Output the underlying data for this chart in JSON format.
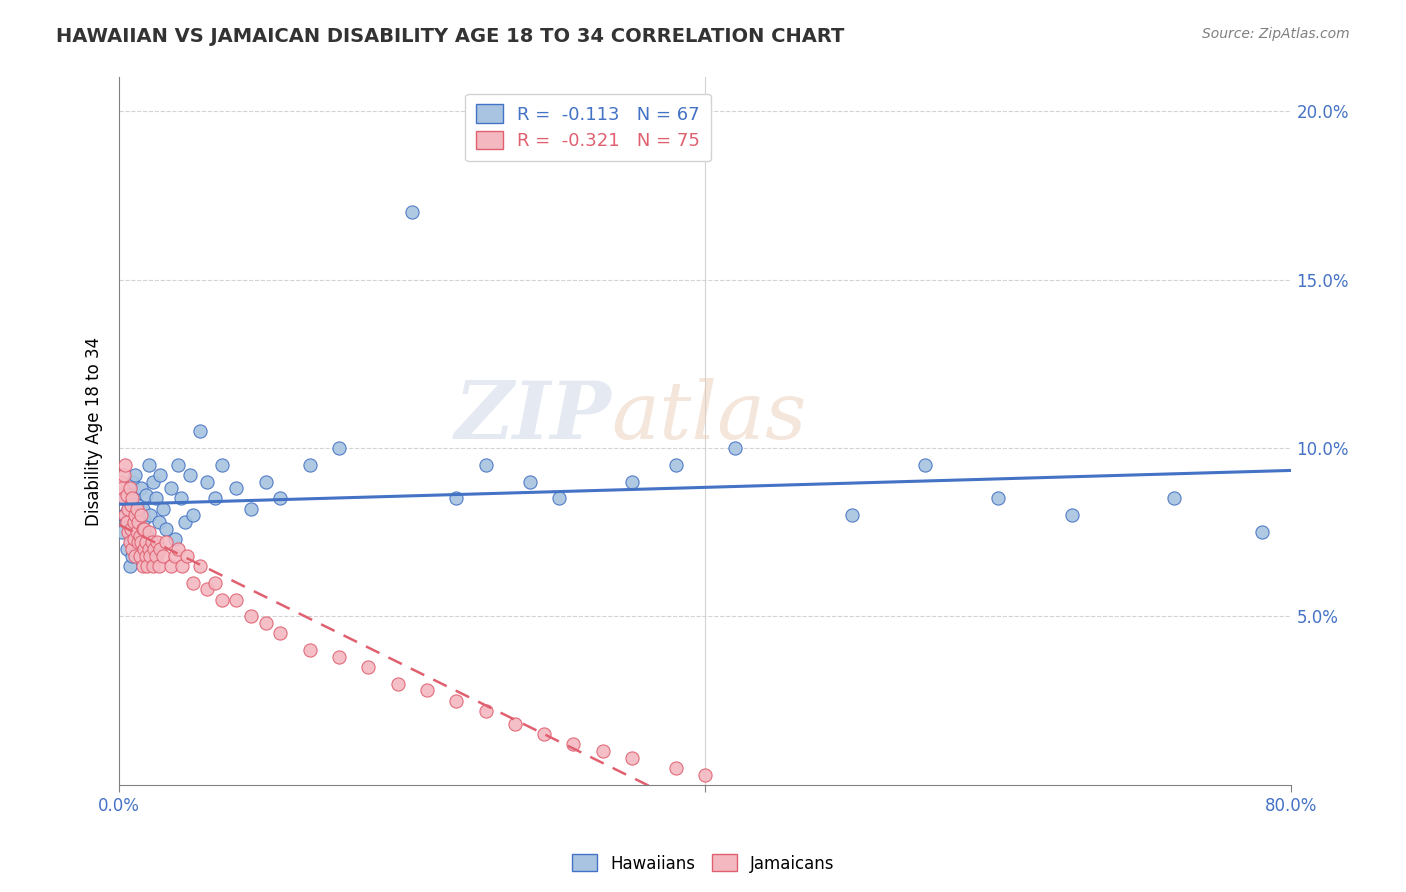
{
  "title": "HAWAIIAN VS JAMAICAN DISABILITY AGE 18 TO 34 CORRELATION CHART",
  "source_text": "Source: ZipAtlas.com",
  "ylabel": "Disability Age 18 to 34",
  "legend_hawaii": "R =  -0.113   N = 67",
  "legend_jamaica": "R =  -0.321   N = 75",
  "hawaii_color": "#a8c4e0",
  "hawaii_line_color": "#4472c4",
  "jamaica_color": "#f4b8c1",
  "jamaica_line_color": "#e06070",
  "background_color": "#ffffff",
  "watermark_zip": "ZIP",
  "watermark_atlas": "atlas",
  "xmin": 0.0,
  "xmax": 0.8,
  "ymin": 0.0,
  "ymax": 0.21,
  "yticks": [
    0.05,
    0.1,
    0.15,
    0.2
  ],
  "ytick_labels": [
    "5.0%",
    "10.0%",
    "15.0%",
    "20.0%"
  ],
  "hawaii_scatter_x": [
    0.002,
    0.003,
    0.004,
    0.005,
    0.005,
    0.006,
    0.007,
    0.007,
    0.008,
    0.008,
    0.009,
    0.009,
    0.01,
    0.01,
    0.011,
    0.011,
    0.012,
    0.012,
    0.013,
    0.014,
    0.015,
    0.015,
    0.016,
    0.016,
    0.017,
    0.018,
    0.019,
    0.02,
    0.021,
    0.022,
    0.023,
    0.025,
    0.027,
    0.028,
    0.03,
    0.032,
    0.035,
    0.038,
    0.04,
    0.042,
    0.045,
    0.048,
    0.05,
    0.055,
    0.06,
    0.065,
    0.07,
    0.08,
    0.09,
    0.1,
    0.11,
    0.13,
    0.15,
    0.2,
    0.23,
    0.25,
    0.28,
    0.3,
    0.35,
    0.38,
    0.42,
    0.5,
    0.55,
    0.6,
    0.65,
    0.72,
    0.78
  ],
  "hawaii_scatter_y": [
    0.075,
    0.08,
    0.085,
    0.07,
    0.078,
    0.082,
    0.065,
    0.088,
    0.072,
    0.076,
    0.068,
    0.09,
    0.073,
    0.085,
    0.077,
    0.092,
    0.069,
    0.083,
    0.078,
    0.071,
    0.076,
    0.088,
    0.073,
    0.082,
    0.079,
    0.086,
    0.074,
    0.095,
    0.08,
    0.07,
    0.09,
    0.085,
    0.078,
    0.092,
    0.082,
    0.076,
    0.088,
    0.073,
    0.095,
    0.085,
    0.078,
    0.092,
    0.08,
    0.105,
    0.09,
    0.085,
    0.095,
    0.088,
    0.082,
    0.09,
    0.085,
    0.095,
    0.1,
    0.17,
    0.085,
    0.095,
    0.09,
    0.085,
    0.09,
    0.095,
    0.1,
    0.08,
    0.095,
    0.085,
    0.08,
    0.085,
    0.075
  ],
  "jamaica_scatter_x": [
    0.001,
    0.002,
    0.003,
    0.003,
    0.004,
    0.004,
    0.005,
    0.005,
    0.006,
    0.006,
    0.007,
    0.007,
    0.008,
    0.008,
    0.009,
    0.009,
    0.01,
    0.01,
    0.011,
    0.011,
    0.012,
    0.012,
    0.013,
    0.013,
    0.014,
    0.014,
    0.015,
    0.015,
    0.016,
    0.016,
    0.017,
    0.017,
    0.018,
    0.018,
    0.019,
    0.02,
    0.02,
    0.021,
    0.022,
    0.023,
    0.024,
    0.025,
    0.026,
    0.027,
    0.028,
    0.03,
    0.032,
    0.035,
    0.038,
    0.04,
    0.043,
    0.046,
    0.05,
    0.055,
    0.06,
    0.065,
    0.07,
    0.08,
    0.09,
    0.1,
    0.11,
    0.13,
    0.15,
    0.17,
    0.19,
    0.21,
    0.23,
    0.25,
    0.27,
    0.29,
    0.31,
    0.33,
    0.35,
    0.38,
    0.4
  ],
  "jamaica_scatter_y": [
    0.09,
    0.088,
    0.085,
    0.092,
    0.08,
    0.095,
    0.078,
    0.086,
    0.075,
    0.082,
    0.072,
    0.088,
    0.076,
    0.083,
    0.07,
    0.085,
    0.078,
    0.073,
    0.08,
    0.068,
    0.075,
    0.082,
    0.072,
    0.078,
    0.068,
    0.074,
    0.08,
    0.072,
    0.076,
    0.065,
    0.07,
    0.076,
    0.068,
    0.072,
    0.065,
    0.07,
    0.075,
    0.068,
    0.072,
    0.065,
    0.07,
    0.068,
    0.072,
    0.065,
    0.07,
    0.068,
    0.072,
    0.065,
    0.068,
    0.07,
    0.065,
    0.068,
    0.06,
    0.065,
    0.058,
    0.06,
    0.055,
    0.055,
    0.05,
    0.048,
    0.045,
    0.04,
    0.038,
    0.035,
    0.03,
    0.028,
    0.025,
    0.022,
    0.018,
    0.015,
    0.012,
    0.01,
    0.008,
    0.005,
    0.003
  ]
}
